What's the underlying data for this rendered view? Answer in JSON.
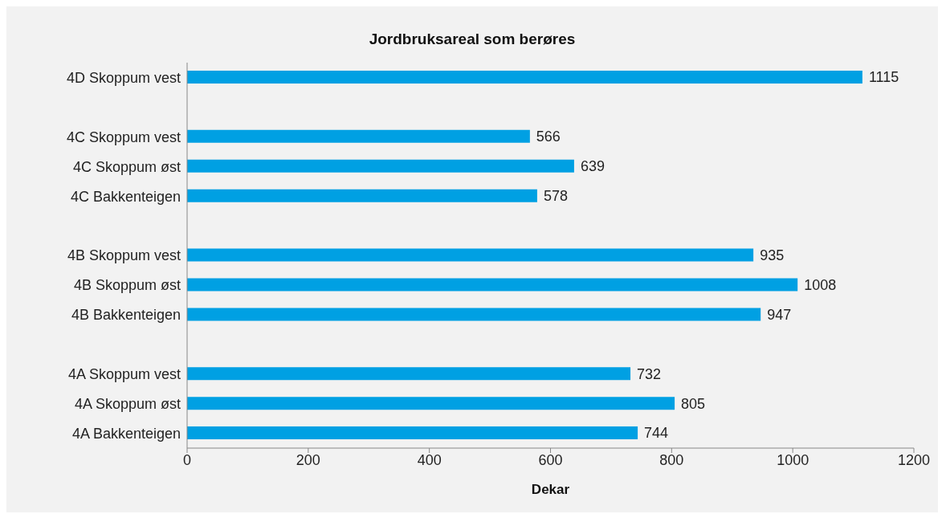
{
  "chart_data": {
    "type": "bar",
    "orientation": "horizontal",
    "title": "Jordbruksareal som berøres",
    "xlabel": "Dekar",
    "categories": [
      "4D Skoppum vest",
      null,
      "4C Skoppum vest",
      "4C Skoppum øst",
      "4C Bakkenteigen",
      null,
      "4B Skoppum vest",
      "4B Skoppum øst",
      "4B Bakkenteigen",
      null,
      "4A Skoppum vest",
      "4A Skoppum øst",
      "4A Bakkenteigen"
    ],
    "values": [
      1115,
      null,
      566,
      639,
      578,
      null,
      935,
      1008,
      947,
      null,
      732,
      805,
      744
    ],
    "color": "#00a0e3",
    "xlim": [
      0,
      1200
    ],
    "xticks": [
      0,
      200,
      400,
      600,
      800,
      1000,
      1200
    ],
    "data_labels": true,
    "grid": false
  }
}
